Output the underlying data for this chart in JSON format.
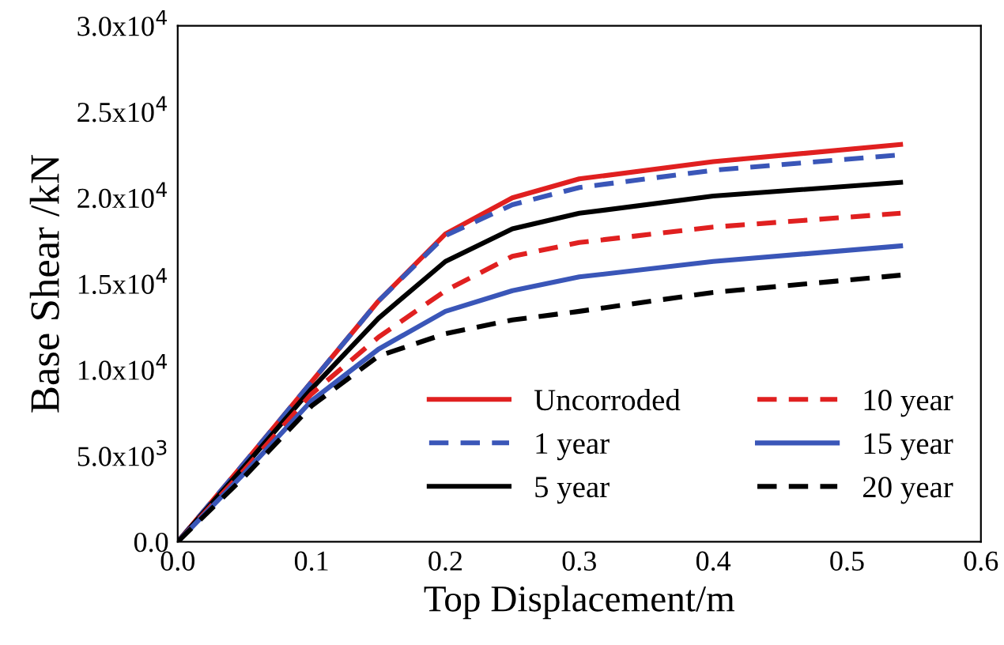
{
  "chart_data": {
    "type": "line",
    "xlabel": "Top Displacement/m",
    "ylabel": "Base Shear /kN",
    "xlim": [
      0,
      0.6
    ],
    "xticks": [
      {
        "value": 0,
        "label": "0.0"
      },
      0.1,
      0.2,
      0.3,
      0.4,
      0.5,
      0.6
    ],
    "ylim": [
      0,
      30000
    ],
    "yticks": [
      {
        "value": 0,
        "label": "0.0"
      },
      {
        "value": 5000,
        "label": "5.0x10$^{3}$"
      },
      {
        "value": 10000,
        "label": "1.0x10$^{4}$"
      },
      {
        "value": 15000,
        "label": "1.5x10$^{4}$"
      },
      {
        "value": 20000,
        "label": "2.0x10$^{4}$"
      },
      {
        "value": 25000,
        "label": "2.5x10$^{4}$"
      },
      {
        "value": 30000,
        "label": "3.0x10$^{4}$"
      }
    ],
    "x": [
      0,
      0.05,
      0.1,
      0.15,
      0.2,
      0.25,
      0.3,
      0.4,
      0.54
    ],
    "legend": "bottom right",
    "grid": false,
    "marker": "none",
    "series": [
      {
        "name": "Uncorroded",
        "color": "#e02020",
        "line_style": "solid",
        "values": [
          0,
          4600,
          9300,
          14000,
          17900,
          20000,
          21100,
          22100,
          23100
        ]
      },
      {
        "name": "1 year",
        "color": "#3a56b8",
        "line_style": "dashed",
        "values": [
          0,
          4600,
          9300,
          14000,
          17800,
          19600,
          20600,
          21600,
          22500
        ]
      },
      {
        "name": "5 year",
        "color": "#000000",
        "line_style": "solid",
        "values": [
          0,
          4400,
          8900,
          13000,
          16300,
          18200,
          19100,
          20100,
          20900
        ]
      },
      {
        "name": "10 year",
        "color": "#e02020",
        "line_style": "dashed",
        "values": [
          0,
          4200,
          8600,
          11900,
          14600,
          16600,
          17400,
          18300,
          19100
        ]
      },
      {
        "name": "15 year",
        "color": "#3a56b8",
        "line_style": "solid",
        "values": [
          0,
          4000,
          8200,
          11200,
          13400,
          14600,
          15400,
          16300,
          17200
        ]
      },
      {
        "name": "20 year",
        "color": "#000000",
        "line_style": "dashed",
        "values": [
          0,
          3800,
          7900,
          10800,
          12100,
          12900,
          13400,
          14500,
          15500
        ]
      }
    ]
  }
}
